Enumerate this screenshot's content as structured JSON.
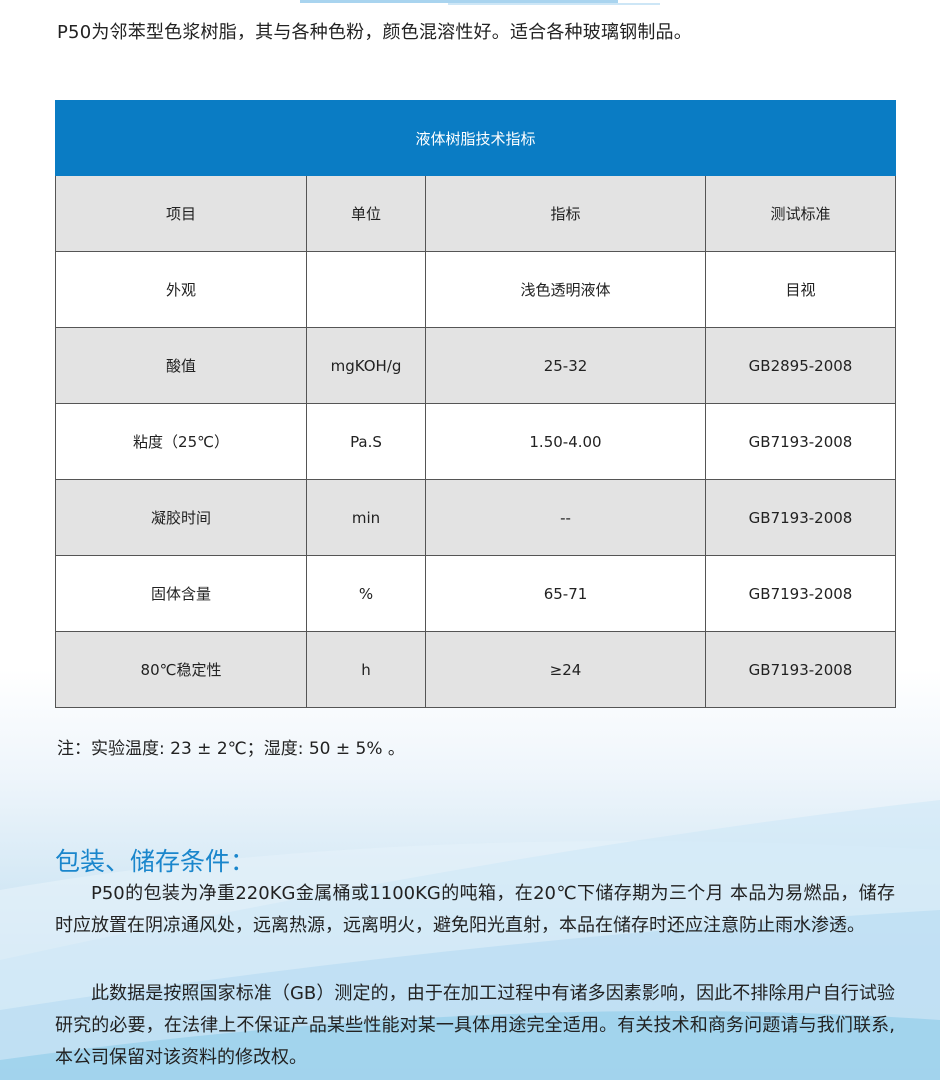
{
  "intro": "P50为邻苯型色浆树脂，其与各种色粉，颜色混溶性好。适合各种玻璃钢制品。",
  "table": {
    "title": "液体树脂技术指标",
    "headers": [
      "项目",
      "单位",
      "指标",
      "测试标准"
    ],
    "rows": [
      [
        "外观",
        "",
        "浅色透明液体",
        "目视"
      ],
      [
        "酸值",
        "mgKOH/g",
        "25-32",
        "GB2895-2008"
      ],
      [
        "粘度（25℃）",
        "Pa.S",
        "1.50-4.00",
        "GB7193-2008"
      ],
      [
        "凝胶时间",
        "min",
        "--",
        "GB7193-2008"
      ],
      [
        "固体含量",
        "%",
        "65-71",
        "GB7193-2008"
      ],
      [
        "80℃稳定性",
        "h",
        "≥24",
        "GB7193-2008"
      ]
    ],
    "header_color": "#0a7cc4"
  },
  "note": "注：实验温度: 23 ± 2℃；湿度: 50 ± 5% 。",
  "packaging": {
    "heading": "包装、储存条件：",
    "paragraphs": [
      "P50的包装为净重220KG金属桶或1100KG的吨箱，在20℃下储存期为三个月 本品为易燃品，储存时应放置在阴凉通风处，远离热源，远离明火，避免阳光直射，本品在储存时还应注意防止雨水渗透。",
      "此数据是按照国家标准（GB）测定的，由于在加工过程中有诸多因素影响，因此不排除用户自行试验研究的必要，在法律上不保证产品某些性能对某一具体用途完全适用。有关技术和商务问题请与我们联系,本公司保留对该资料的修改权。"
    ]
  }
}
